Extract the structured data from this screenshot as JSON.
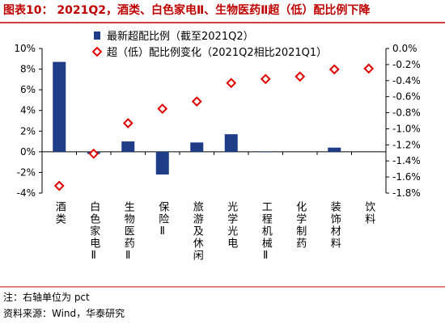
{
  "chart_data": {
    "type": "bar",
    "title": "图表10： 2021Q2，酒类、白色家电Ⅱ、生物医药Ⅱ超（低）配比例下降",
    "categories": [
      "酒类",
      "白色家电Ⅱ",
      "生物医药Ⅱ",
      "保险Ⅱ",
      "旅游及休闲",
      "光学光电",
      "工程机械Ⅱ",
      "化学制药",
      "装饰材料",
      "饮料"
    ],
    "series": [
      {
        "name": "最新超配比例（截至2021Q2）",
        "type": "bar",
        "color": "#1f3c88",
        "values": [
          8.7,
          -0.2,
          1.0,
          -2.2,
          0.9,
          1.7,
          -0.05,
          0.0,
          0.4,
          null
        ]
      },
      {
        "name": "超（低）配比例变化（2021Q2相比2021Q1）",
        "type": "scatter",
        "marker": "diamond",
        "color": "#e00000",
        "axis": "y2",
        "values": [
          -1.71,
          -1.31,
          -0.93,
          -0.75,
          -0.66,
          -0.43,
          -0.38,
          -0.35,
          -0.26,
          -0.25
        ]
      }
    ],
    "ylim": [
      -4,
      10
    ],
    "yticks": [
      {
        "value": -4,
        "label": "-4%"
      },
      {
        "value": -2,
        "label": "-2%"
      },
      {
        "value": 0,
        "label": "0%"
      },
      {
        "value": 2,
        "label": "2%"
      },
      {
        "value": 4,
        "label": "4%"
      },
      {
        "value": 6,
        "label": "6%"
      },
      {
        "value": 8,
        "label": "8%"
      },
      {
        "value": 10,
        "label": "10%"
      }
    ],
    "y2lim": [
      -1.8,
      0
    ],
    "y2ticks": [
      {
        "value": -1.8,
        "label": "-1.8%"
      },
      {
        "value": -1.6,
        "label": "-1.6%"
      },
      {
        "value": -1.4,
        "label": "-1.4%"
      },
      {
        "value": -1.2,
        "label": "-1.2%"
      },
      {
        "value": -1.0,
        "label": "-1.0%"
      },
      {
        "value": -0.8,
        "label": "-0.8%"
      },
      {
        "value": -0.6,
        "label": "-0.6%"
      },
      {
        "value": -0.4,
        "label": "-0.4%"
      },
      {
        "value": -0.2,
        "label": "-0.2%"
      },
      {
        "value": 0,
        "label": "0.0%"
      }
    ],
    "notes": [
      "注：右轴单位为 pct",
      "资料来源：Wind，华泰研究"
    ]
  }
}
